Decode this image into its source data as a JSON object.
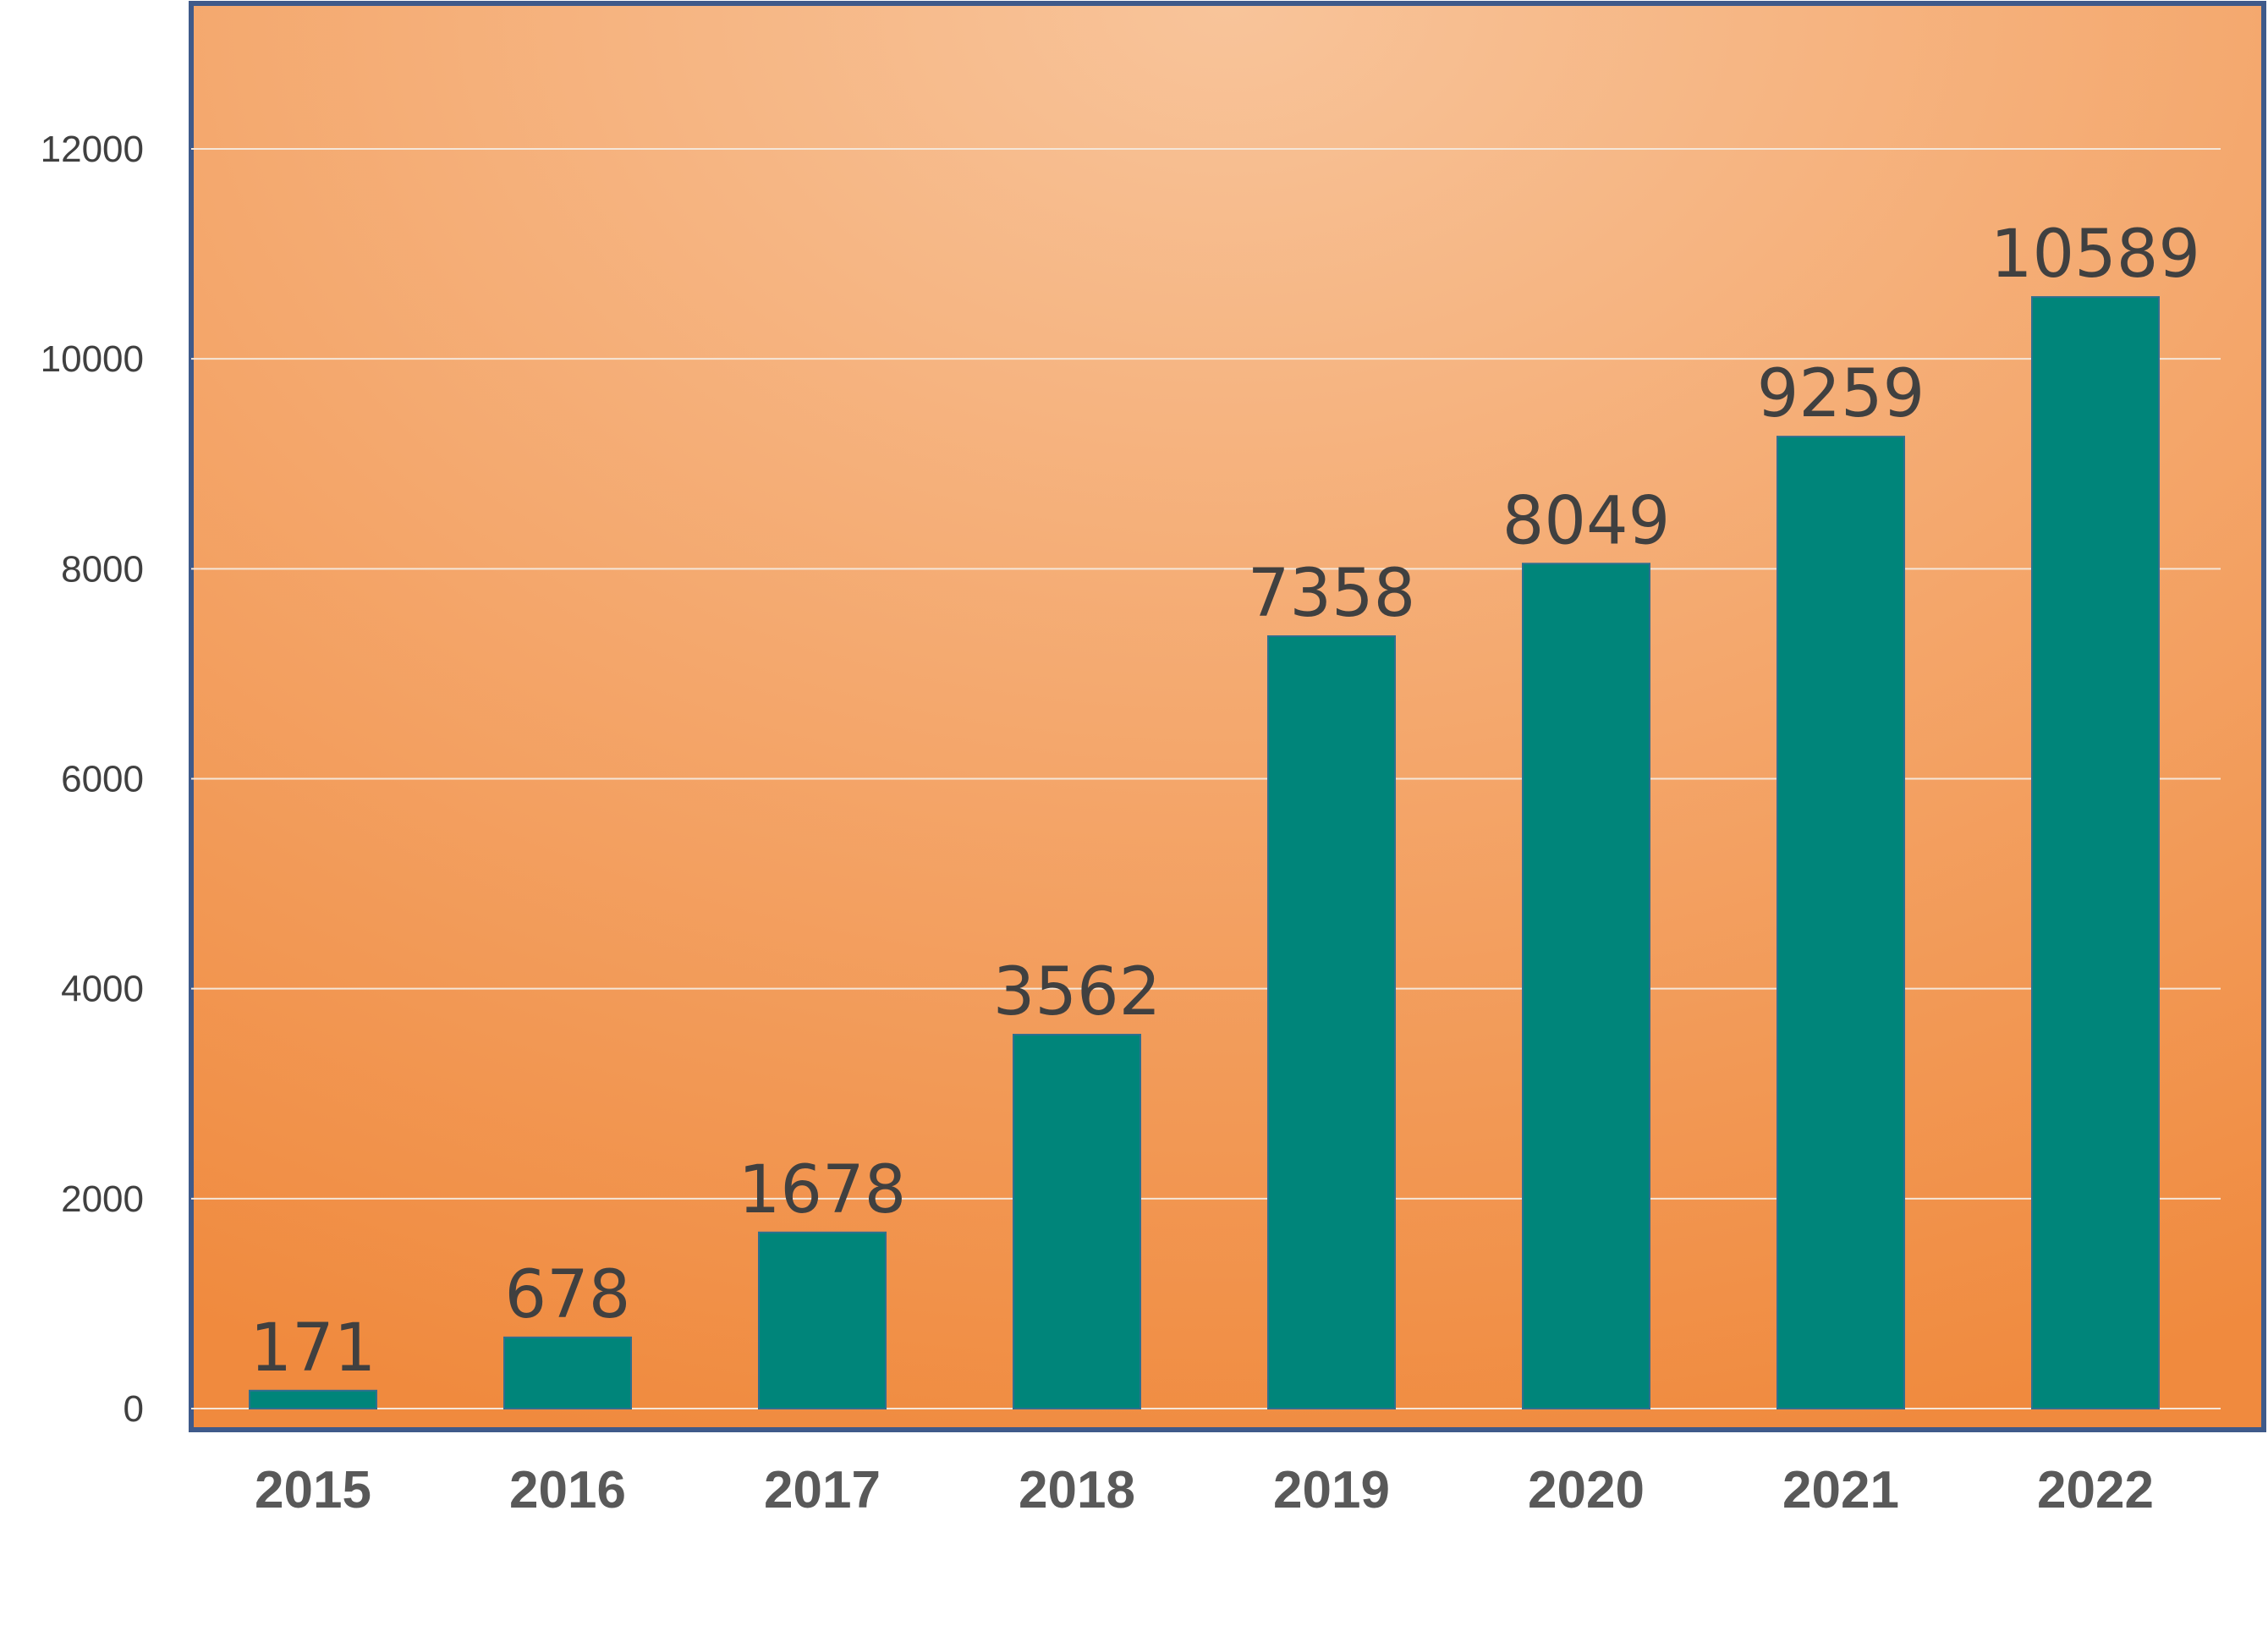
{
  "chart_data": {
    "type": "bar",
    "title": "",
    "xlabel": "",
    "ylabel": "",
    "categories": [
      "2015",
      "2016",
      "2017",
      "2018",
      "2019",
      "2020",
      "2021",
      "2022"
    ],
    "values": [
      171,
      678,
      1678,
      3562,
      7358,
      8049,
      9259,
      10589
    ],
    "data_labels": [
      "171",
      "678",
      "1678",
      "3562",
      "7358",
      "8049",
      "9259",
      "10589"
    ],
    "ylim": [
      0,
      13200
    ],
    "yticks": [
      0,
      2000,
      4000,
      6000,
      8000,
      10000,
      12000
    ],
    "ytick_labels": [
      "0",
      "2000",
      "4000",
      "6000",
      "8000",
      "10000",
      "12000"
    ],
    "grid": true,
    "legend": "none",
    "colors": {
      "bar": "#00857A",
      "bar_edge": "#2F6F8F",
      "plot_bg_center": "#F8C49A",
      "plot_bg_edge": "#F08A3E",
      "plot_border": "#3F5A8A",
      "gridline": "#F5E6D8"
    }
  }
}
